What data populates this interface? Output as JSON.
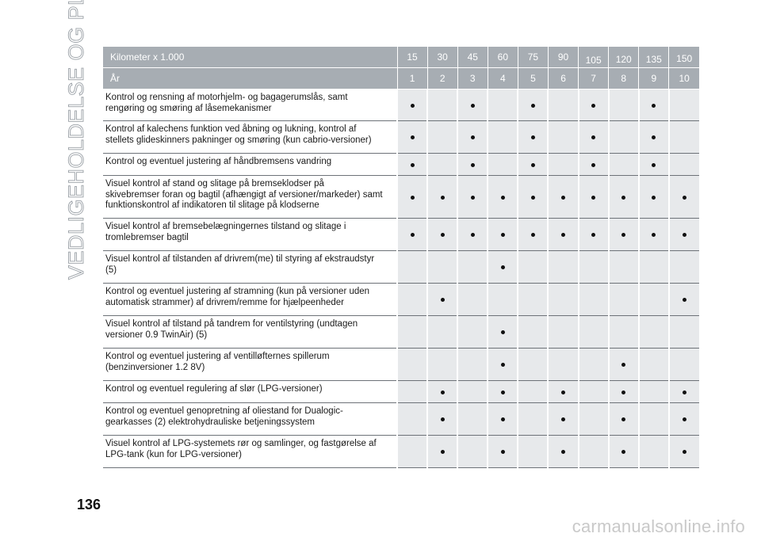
{
  "side_title": "VEDLIGEHOLDELSE OG PLEJE",
  "page_number": "136",
  "watermark": "carmanualsonline.info",
  "table": {
    "km_label": "Kilometer x 1.000",
    "km_values": [
      "15",
      "30",
      "45",
      "60",
      "75",
      "90",
      "105",
      "120",
      "135",
      "150"
    ],
    "year_label": "År",
    "year_values": [
      "1",
      "2",
      "3",
      "4",
      "5",
      "6",
      "7",
      "8",
      "9",
      "10"
    ],
    "rows": [
      {
        "text": "Kontrol og rensning af motorhjelm- og bagagerumslås, samt\nrengøring og smøring af låsemekanismer",
        "marks": [
          1,
          0,
          1,
          0,
          1,
          0,
          1,
          0,
          1,
          0
        ]
      },
      {
        "text": "Kontrol af kalechens funktion ved åbning og lukning, kontrol af\nstellets glideskinners pakninger og smøring (kun cabrio-versioner)",
        "marks": [
          1,
          0,
          1,
          0,
          1,
          0,
          1,
          0,
          1,
          0
        ]
      },
      {
        "text": "Kontrol og eventuel justering af håndbremsens vandring",
        "marks": [
          1,
          0,
          1,
          0,
          1,
          0,
          1,
          0,
          1,
          0
        ]
      },
      {
        "text": "Visuel kontrol af stand og slitage på bremseklodser på\nskivebremser foran og bagtil (afhængigt af versioner/markeder) samt\nfunktionskontrol af indikatoren til slitage på klodserne",
        "marks": [
          1,
          1,
          1,
          1,
          1,
          1,
          1,
          1,
          1,
          1
        ]
      },
      {
        "text": "Visuel kontrol af bremsebelægningernes tilstand og slitage i\ntromlebremser bagtil",
        "marks": [
          1,
          1,
          1,
          1,
          1,
          1,
          1,
          1,
          1,
          1
        ]
      },
      {
        "text": "Visuel kontrol af tilstanden af drivrem(me) til styring af ekstraudstyr\n(5)",
        "marks": [
          0,
          0,
          0,
          1,
          0,
          0,
          0,
          0,
          0,
          0
        ]
      },
      {
        "text": "Kontrol og eventuel justering af stramning (kun på versioner uden\nautomatisk strammer) af drivrem/remme for hjælpeenheder",
        "marks": [
          0,
          1,
          0,
          0,
          0,
          0,
          0,
          0,
          0,
          1
        ]
      },
      {
        "text": "Visuel kontrol af tilstand på tandrem for ventilstyring (undtagen\nversioner 0.9 TwinAir) (5)",
        "marks": [
          0,
          0,
          0,
          1,
          0,
          0,
          0,
          0,
          0,
          0
        ]
      },
      {
        "text": "Kontrol og eventuel justering af ventilløfternes spillerum\n(benzinversioner 1.2 8V)",
        "marks": [
          0,
          0,
          0,
          1,
          0,
          0,
          0,
          1,
          0,
          0
        ]
      },
      {
        "text": "Kontrol og eventuel regulering af slør (LPG-versioner)",
        "marks": [
          0,
          1,
          0,
          1,
          0,
          1,
          0,
          1,
          0,
          1
        ]
      },
      {
        "text": "Kontrol og eventuel genopretning af oliestand for Dualogic-\ngearkasses (2) elektrohydrauliske betjeningssystem",
        "marks": [
          0,
          1,
          0,
          1,
          0,
          1,
          0,
          1,
          0,
          1
        ]
      },
      {
        "text": "Visuel kontrol af LPG-systemets rør og samlinger, og fastgørelse af\nLPG-tank (kun for LPG-versioner)",
        "marks": [
          0,
          1,
          0,
          1,
          0,
          1,
          0,
          1,
          0,
          1
        ]
      }
    ]
  }
}
